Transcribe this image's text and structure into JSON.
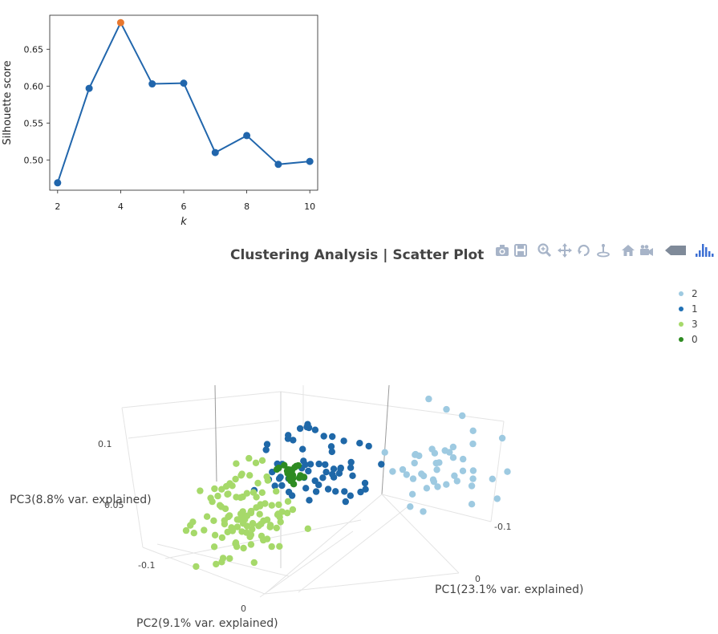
{
  "chart_data": [
    {
      "type": "line",
      "x": [
        2,
        3,
        4,
        5,
        6,
        7,
        8,
        9,
        10
      ],
      "y": [
        0.469,
        0.597,
        0.686,
        0.603,
        0.604,
        0.51,
        0.533,
        0.494,
        0.498
      ],
      "highlight_x": 4,
      "xlabel": "k",
      "ylabel": "Silhouette score",
      "xticks": [
        2,
        4,
        6,
        8,
        10
      ],
      "yticks": [
        0.5,
        0.55,
        0.6,
        0.65
      ],
      "ytick_labels": [
        "0.50",
        "0.55",
        "0.60",
        "0.65"
      ],
      "xlim": [
        1.75,
        10.25
      ],
      "ylim": [
        0.459,
        0.696
      ],
      "line_color": "#2166ac",
      "highlight_color": "#e8772e"
    },
    {
      "type": "scatter",
      "title": "Clustering Analysis | Scatter Plot",
      "xlabel": "PC1(23.1% var. explained)",
      "ylabel": "PC2(9.1% var. explained)",
      "zlabel": "PC3(8.8% var. explained)",
      "x_ticks": [
        "-0.1",
        "0"
      ],
      "y_ticks": [
        "-0.1",
        "0"
      ],
      "z_ticks": [
        "0.1",
        "0.05"
      ],
      "legend": [
        {
          "name": "2",
          "color": "#9ecae1"
        },
        {
          "name": "1",
          "color": "#2171b5"
        },
        {
          "name": "3",
          "color": "#a6d96a"
        },
        {
          "name": "0",
          "color": "#2e8b22"
        }
      ],
      "series": [
        {
          "name": "2",
          "color": "#9ecae1",
          "count": 45
        },
        {
          "name": "1",
          "color": "#1f68a8",
          "count": 65
        },
        {
          "name": "3",
          "color": "#a6d96a",
          "count": 110
        },
        {
          "name": "0",
          "color": "#2e8b22",
          "count": 25
        }
      ]
    }
  ],
  "modebar": {
    "icons": [
      "camera-icon",
      "save-icon",
      "zoom-icon",
      "pan-icon",
      "orbit-icon",
      "turntable-icon",
      "home-icon",
      "video-camera-icon",
      "tag-icon",
      "plotly-logo-icon"
    ]
  }
}
